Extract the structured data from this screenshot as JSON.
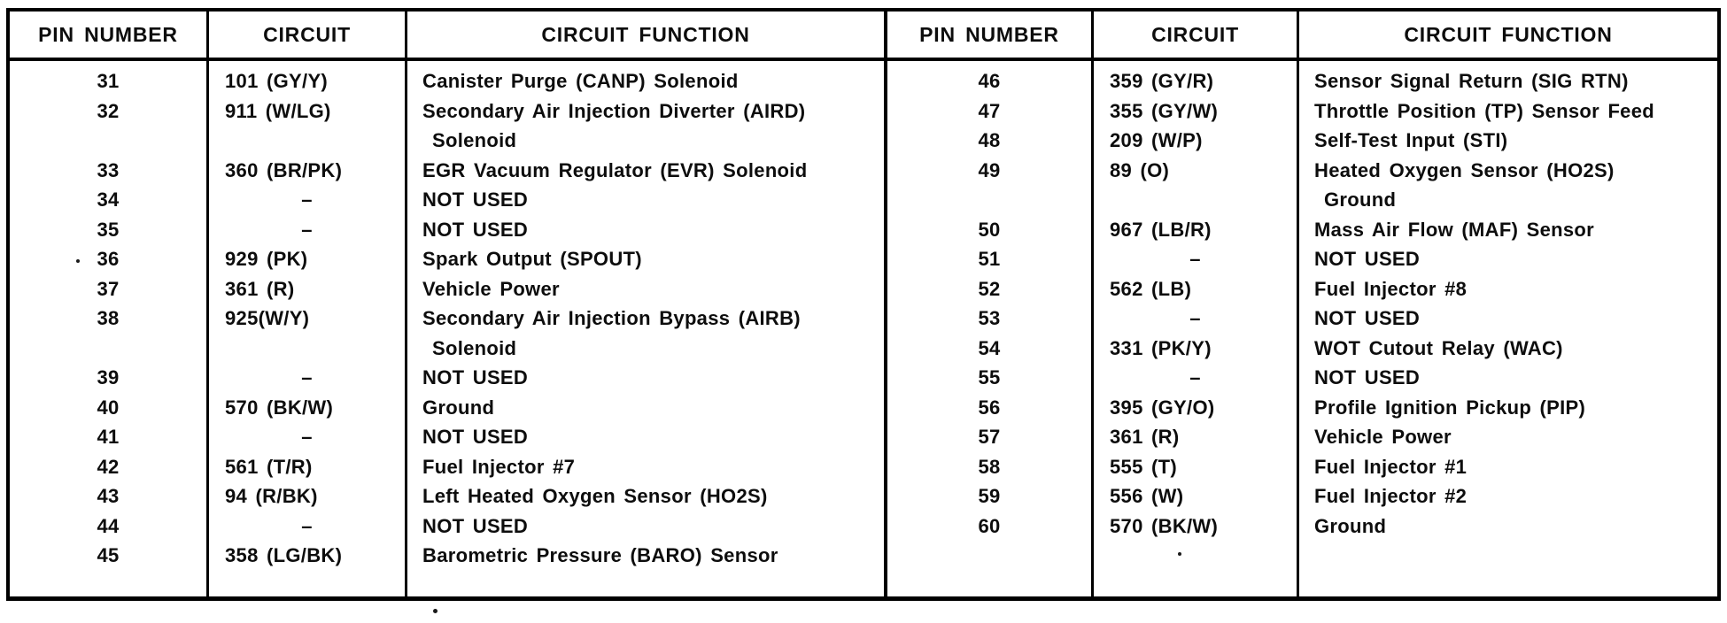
{
  "tables": [
    {
      "name": "connector-pinout-left",
      "headers": [
        "PIN NUMBER",
        "CIRCUIT",
        "CIRCUIT FUNCTION"
      ],
      "lines": [
        {
          "pin": "31",
          "circuit": "101 (GY/Y)",
          "func": "Canister Purge (CANP) Solenoid",
          "cont": false
        },
        {
          "pin": "32",
          "circuit": "911 (W/LG)",
          "func": "Secondary Air Injection Diverter (AIRD)",
          "cont": false
        },
        {
          "pin": "",
          "circuit": "",
          "func": "Solenoid",
          "cont": true
        },
        {
          "pin": "33",
          "circuit": "360 (BR/PK)",
          "func": "EGR Vacuum Regulator (EVR) Solenoid",
          "cont": false
        },
        {
          "pin": "34",
          "circuit": "–",
          "func": "NOT USED",
          "cont": false
        },
        {
          "pin": "35",
          "circuit": "–",
          "func": "NOT USED",
          "cont": false
        },
        {
          "pin": "36",
          "circuit": "929 (PK)",
          "func": "Spark Output (SPOUT)",
          "cont": false
        },
        {
          "pin": "37",
          "circuit": "361 (R)",
          "func": "Vehicle Power",
          "cont": false
        },
        {
          "pin": "38",
          "circuit": "925(W/Y)",
          "func": "Secondary Air Injection Bypass (AIRB)",
          "cont": false
        },
        {
          "pin": "",
          "circuit": "",
          "func": "Solenoid",
          "cont": true
        },
        {
          "pin": "39",
          "circuit": "–",
          "func": "NOT USED",
          "cont": false
        },
        {
          "pin": "40",
          "circuit": "570 (BK/W)",
          "func": "Ground",
          "cont": false
        },
        {
          "pin": "41",
          "circuit": "–",
          "func": "NOT USED",
          "cont": false
        },
        {
          "pin": "42",
          "circuit": "561 (T/R)",
          "func": "Fuel Injector #7",
          "cont": false
        },
        {
          "pin": "43",
          "circuit": "94 (R/BK)",
          "func": "Left Heated Oxygen Sensor (HO2S)",
          "cont": false
        },
        {
          "pin": "44",
          "circuit": "–",
          "func": "NOT USED",
          "cont": false
        },
        {
          "pin": "45",
          "circuit": "358 (LG/BK)",
          "func": "Barometric Pressure (BARO) Sensor",
          "cont": false
        }
      ]
    },
    {
      "name": "connector-pinout-right",
      "headers": [
        "PIN NUMBER",
        "CIRCUIT",
        "CIRCUIT FUNCTION"
      ],
      "lines": [
        {
          "pin": "46",
          "circuit": "359 (GY/R)",
          "func": "Sensor Signal Return (SIG RTN)",
          "cont": false
        },
        {
          "pin": "47",
          "circuit": "355 (GY/W)",
          "func": "Throttle Position (TP) Sensor Feed",
          "cont": false
        },
        {
          "pin": "48",
          "circuit": "209 (W/P)",
          "func": "Self-Test Input (STI)",
          "cont": false
        },
        {
          "pin": "49",
          "circuit": "89 (O)",
          "func": "Heated Oxygen Sensor (HO2S)",
          "cont": false
        },
        {
          "pin": "",
          "circuit": "",
          "func": "Ground",
          "cont": true
        },
        {
          "pin": "50",
          "circuit": "967 (LB/R)",
          "func": "Mass Air Flow (MAF) Sensor",
          "cont": false
        },
        {
          "pin": "51",
          "circuit": "–",
          "func": "NOT USED",
          "cont": false
        },
        {
          "pin": "52",
          "circuit": "562 (LB)",
          "func": "Fuel Injector #8",
          "cont": false
        },
        {
          "pin": "53",
          "circuit": "–",
          "func": "NOT USED",
          "cont": false
        },
        {
          "pin": "54",
          "circuit": "331 (PK/Y)",
          "func": "WOT Cutout Relay (WAC)",
          "cont": false
        },
        {
          "pin": "55",
          "circuit": "–",
          "func": "NOT USED",
          "cont": false
        },
        {
          "pin": "56",
          "circuit": "395 (GY/O)",
          "func": "Profile Ignition Pickup (PIP)",
          "cont": false
        },
        {
          "pin": "57",
          "circuit": "361 (R)",
          "func": "Vehicle Power",
          "cont": false
        },
        {
          "pin": "58",
          "circuit": "555 (T)",
          "func": "Fuel Injector #1",
          "cont": false
        },
        {
          "pin": "59",
          "circuit": "556 (W)",
          "func": "Fuel Injector #2",
          "cont": false
        },
        {
          "pin": "60",
          "circuit": "570 (BK/W)",
          "func": "Ground",
          "cont": false
        }
      ]
    }
  ],
  "ink_color": "#0d0d0d",
  "paper_color": "#ffffff"
}
